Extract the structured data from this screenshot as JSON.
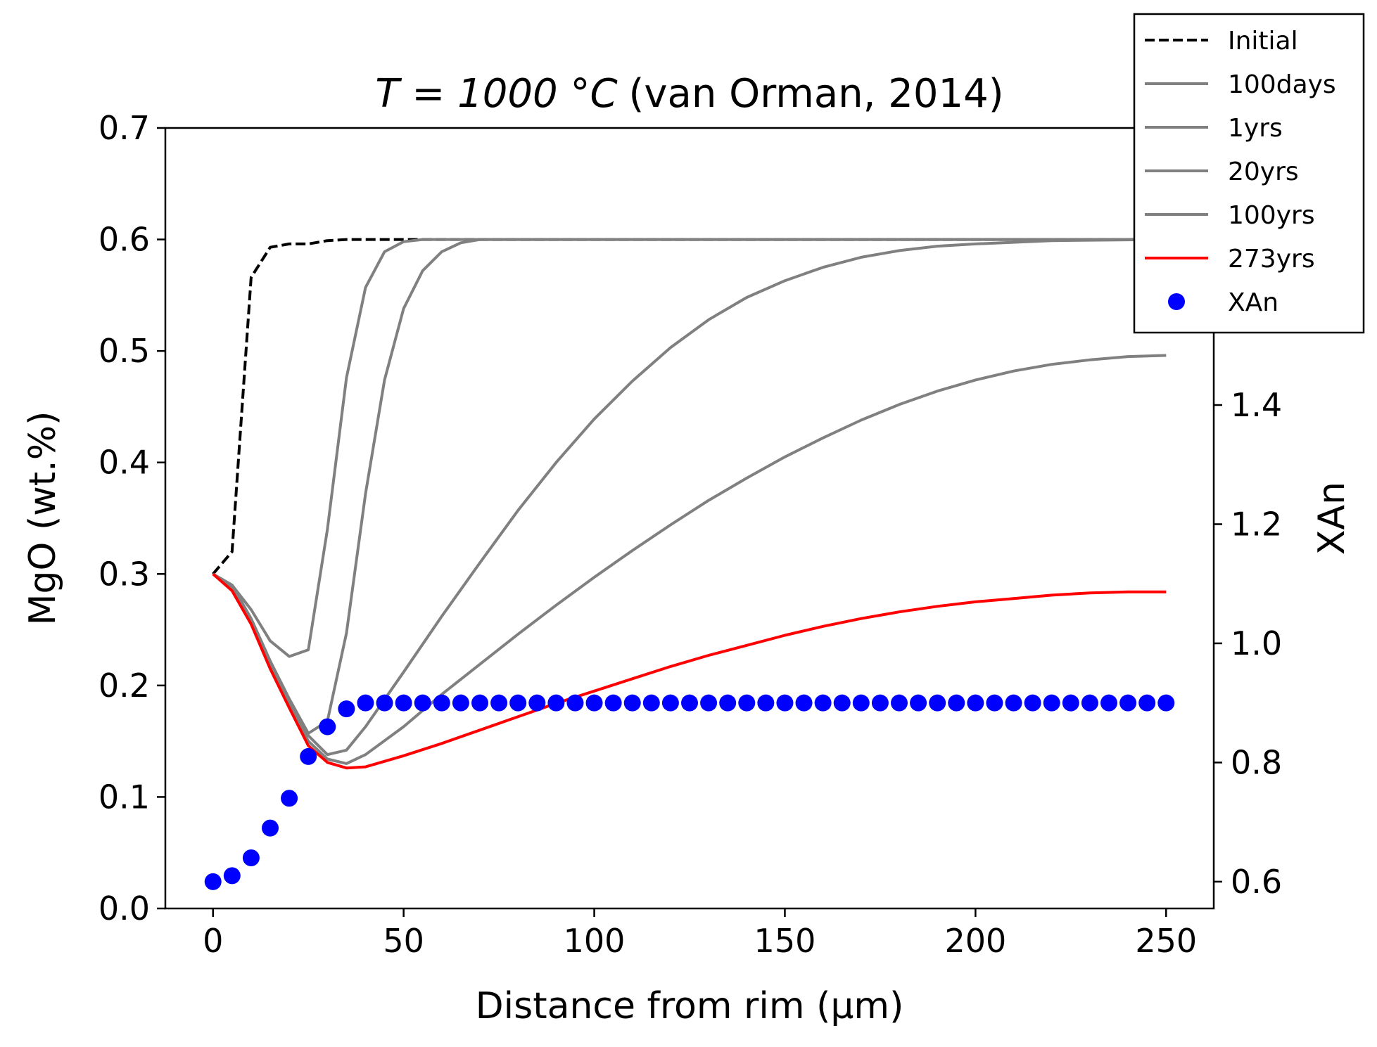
{
  "chart_data": {
    "type": "line",
    "title_math": "T = 1000 °C",
    "title_text": "(van Orman, 2014)",
    "xlabel": "Distance from rim (μm)",
    "ylabel": "MgO (wt.%)",
    "y2label": "XAn",
    "xlim": [
      -12.5,
      262.5
    ],
    "ylim": [
      0.0,
      0.7
    ],
    "y2lim": [
      0.555,
      1.865
    ],
    "xticks": [
      0,
      50,
      100,
      150,
      200,
      250
    ],
    "yticks": [
      0.0,
      0.1,
      0.2,
      0.3,
      0.4,
      0.5,
      0.6,
      0.7
    ],
    "y2ticks": [
      0.6,
      0.8,
      1.0,
      1.2,
      1.4,
      1.6
    ],
    "grid": false,
    "legend_position": "top-right",
    "colors": {
      "initial": "#000000",
      "gray": "#808080",
      "final": "#ff0000",
      "xan": "#0000ff"
    },
    "series": [
      {
        "name": "Initial",
        "style": "dashed",
        "color": "#000000",
        "axis": "left",
        "x": [
          0,
          5,
          10,
          15,
          20,
          25,
          30,
          35,
          40,
          45,
          50,
          60,
          80,
          100,
          150,
          200,
          250
        ],
        "y": [
          0.3,
          0.32,
          0.566,
          0.593,
          0.596,
          0.596,
          0.599,
          0.6,
          0.6,
          0.6,
          0.6,
          0.6,
          0.6,
          0.6,
          0.6,
          0.6,
          0.6
        ]
      },
      {
        "name": "100days",
        "style": "solid",
        "color": "#808080",
        "axis": "left",
        "x": [
          0,
          5,
          10,
          15,
          20,
          25,
          30,
          35,
          40,
          45,
          50,
          55,
          60,
          80,
          100,
          150,
          200,
          250
        ],
        "y": [
          0.3,
          0.29,
          0.268,
          0.24,
          0.226,
          0.232,
          0.34,
          0.476,
          0.557,
          0.589,
          0.598,
          0.6,
          0.6,
          0.6,
          0.6,
          0.6,
          0.6,
          0.6
        ]
      },
      {
        "name": "1yrs",
        "style": "solid",
        "color": "#808080",
        "axis": "left",
        "x": [
          0,
          5,
          10,
          15,
          20,
          25,
          30,
          35,
          40,
          45,
          50,
          55,
          60,
          65,
          70,
          80,
          100,
          150,
          200,
          250
        ],
        "y": [
          0.3,
          0.29,
          0.26,
          0.222,
          0.188,
          0.157,
          0.168,
          0.247,
          0.372,
          0.474,
          0.538,
          0.572,
          0.589,
          0.597,
          0.6,
          0.6,
          0.6,
          0.6,
          0.6,
          0.6
        ]
      },
      {
        "name": "20yrs",
        "style": "solid",
        "color": "#808080",
        "axis": "left",
        "x": [
          0,
          5,
          10,
          15,
          20,
          25,
          30,
          35,
          40,
          50,
          60,
          70,
          80,
          90,
          100,
          110,
          120,
          130,
          140,
          150,
          160,
          170,
          180,
          190,
          200,
          220,
          250
        ],
        "y": [
          0.3,
          0.287,
          0.258,
          0.22,
          0.184,
          0.155,
          0.138,
          0.142,
          0.163,
          0.212,
          0.262,
          0.31,
          0.357,
          0.4,
          0.439,
          0.473,
          0.503,
          0.528,
          0.548,
          0.563,
          0.575,
          0.584,
          0.59,
          0.594,
          0.596,
          0.599,
          0.6
        ]
      },
      {
        "name": "100yrs",
        "style": "solid",
        "color": "#808080",
        "axis": "left",
        "x": [
          0,
          5,
          10,
          15,
          20,
          25,
          30,
          35,
          40,
          50,
          60,
          70,
          80,
          90,
          100,
          110,
          120,
          130,
          140,
          150,
          160,
          170,
          180,
          190,
          200,
          210,
          220,
          230,
          240,
          250
        ],
        "y": [
          0.3,
          0.286,
          0.257,
          0.218,
          0.182,
          0.15,
          0.134,
          0.13,
          0.138,
          0.163,
          0.192,
          0.219,
          0.246,
          0.272,
          0.297,
          0.321,
          0.344,
          0.366,
          0.386,
          0.405,
          0.422,
          0.438,
          0.452,
          0.464,
          0.474,
          0.482,
          0.488,
          0.492,
          0.495,
          0.496
        ]
      },
      {
        "name": "273yrs",
        "style": "solid",
        "color": "#ff0000",
        "axis": "left",
        "x": [
          0,
          5,
          10,
          15,
          20,
          25,
          30,
          35,
          40,
          50,
          60,
          70,
          80,
          90,
          100,
          110,
          120,
          130,
          140,
          150,
          160,
          170,
          180,
          190,
          200,
          210,
          220,
          230,
          240,
          250
        ],
        "y": [
          0.3,
          0.285,
          0.255,
          0.215,
          0.18,
          0.146,
          0.131,
          0.126,
          0.127,
          0.137,
          0.148,
          0.16,
          0.172,
          0.184,
          0.195,
          0.206,
          0.217,
          0.227,
          0.236,
          0.245,
          0.253,
          0.26,
          0.266,
          0.271,
          0.275,
          0.278,
          0.281,
          0.283,
          0.284,
          0.284
        ]
      },
      {
        "name": "XAn",
        "style": "markers",
        "color": "#0000ff",
        "axis": "right",
        "x": [
          0,
          5,
          10,
          15,
          20,
          25,
          30,
          35,
          40,
          45,
          50,
          55,
          60,
          65,
          70,
          75,
          80,
          85,
          90,
          95,
          100,
          105,
          110,
          115,
          120,
          125,
          130,
          135,
          140,
          145,
          150,
          155,
          160,
          165,
          170,
          175,
          180,
          185,
          190,
          195,
          200,
          205,
          210,
          215,
          220,
          225,
          230,
          235,
          240,
          245,
          250
        ],
        "y": [
          0.6,
          0.61,
          0.64,
          0.69,
          0.74,
          0.81,
          0.86,
          0.89,
          0.9,
          0.9,
          0.9,
          0.9,
          0.9,
          0.9,
          0.9,
          0.9,
          0.9,
          0.9,
          0.9,
          0.9,
          0.9,
          0.9,
          0.9,
          0.9,
          0.9,
          0.9,
          0.9,
          0.9,
          0.9,
          0.9,
          0.9,
          0.9,
          0.9,
          0.9,
          0.9,
          0.9,
          0.9,
          0.9,
          0.9,
          0.9,
          0.9,
          0.9,
          0.9,
          0.9,
          0.9,
          0.9,
          0.9,
          0.9,
          0.9,
          0.9,
          0.9
        ]
      }
    ]
  }
}
